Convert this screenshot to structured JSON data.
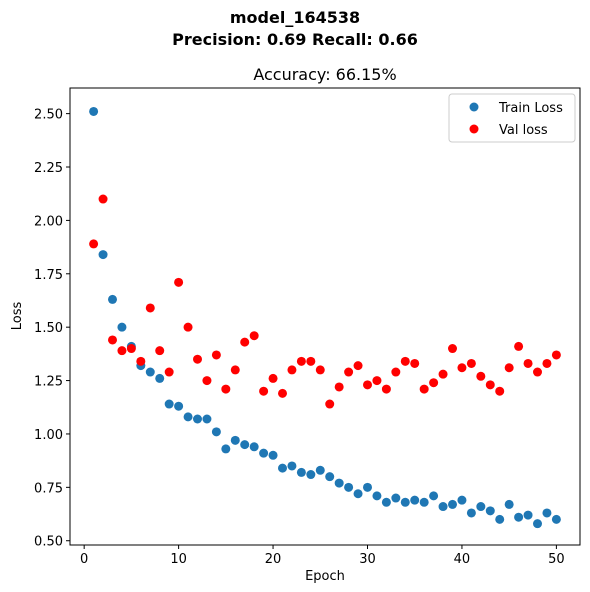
{
  "figure": {
    "suptitle_line1": "model_164538",
    "suptitle_line2": "Precision: 0.69 Recall: 0.66"
  },
  "chart_data": {
    "type": "scatter",
    "title": "Accuracy: 66.15%",
    "xlabel": "Epoch",
    "ylabel": "Loss",
    "xlim": [
      -1.5,
      52.5
    ],
    "ylim": [
      0.48,
      2.62
    ],
    "xticks": [
      0,
      10,
      20,
      30,
      40,
      50
    ],
    "xtick_labels": [
      "0",
      "10",
      "20",
      "30",
      "40",
      "50"
    ],
    "yticks": [
      0.5,
      0.75,
      1.0,
      1.25,
      1.5,
      1.75,
      2.0,
      2.25,
      2.5
    ],
    "ytick_labels": [
      "0.50",
      "0.75",
      "1.00",
      "1.25",
      "1.50",
      "1.75",
      "2.00",
      "2.25",
      "2.50"
    ],
    "grid": false,
    "legend_position": "top-right",
    "x": [
      1,
      2,
      3,
      4,
      5,
      6,
      7,
      8,
      9,
      10,
      11,
      12,
      13,
      14,
      15,
      16,
      17,
      18,
      19,
      20,
      21,
      22,
      23,
      24,
      25,
      26,
      27,
      28,
      29,
      30,
      31,
      32,
      33,
      34,
      35,
      36,
      37,
      38,
      39,
      40,
      41,
      42,
      43,
      44,
      45,
      46,
      47,
      48,
      49,
      50
    ],
    "series": [
      {
        "name": "Train Loss",
        "color": "#1f77b4",
        "values": [
          2.51,
          1.84,
          1.63,
          1.5,
          1.41,
          1.32,
          1.29,
          1.26,
          1.14,
          1.13,
          1.08,
          1.07,
          1.07,
          1.01,
          0.93,
          0.97,
          0.95,
          0.94,
          0.91,
          0.9,
          0.84,
          0.85,
          0.82,
          0.81,
          0.83,
          0.8,
          0.77,
          0.75,
          0.72,
          0.75,
          0.71,
          0.68,
          0.7,
          0.68,
          0.69,
          0.68,
          0.71,
          0.66,
          0.67,
          0.69,
          0.63,
          0.66,
          0.64,
          0.6,
          0.67,
          0.61,
          0.62,
          0.58,
          0.63,
          0.6
        ]
      },
      {
        "name": "Val loss",
        "color": "#ff0000",
        "values": [
          1.89,
          2.1,
          1.44,
          1.39,
          1.4,
          1.34,
          1.59,
          1.39,
          1.29,
          1.71,
          1.5,
          1.35,
          1.25,
          1.37,
          1.21,
          1.3,
          1.43,
          1.46,
          1.2,
          1.26,
          1.19,
          1.3,
          1.34,
          1.34,
          1.3,
          1.14,
          1.22,
          1.29,
          1.32,
          1.23,
          1.25,
          1.21,
          1.29,
          1.34,
          1.33,
          1.21,
          1.24,
          1.28,
          1.4,
          1.31,
          1.33,
          1.27,
          1.23,
          1.2,
          1.31,
          1.41,
          1.33,
          1.29,
          1.33,
          1.37
        ]
      }
    ]
  }
}
